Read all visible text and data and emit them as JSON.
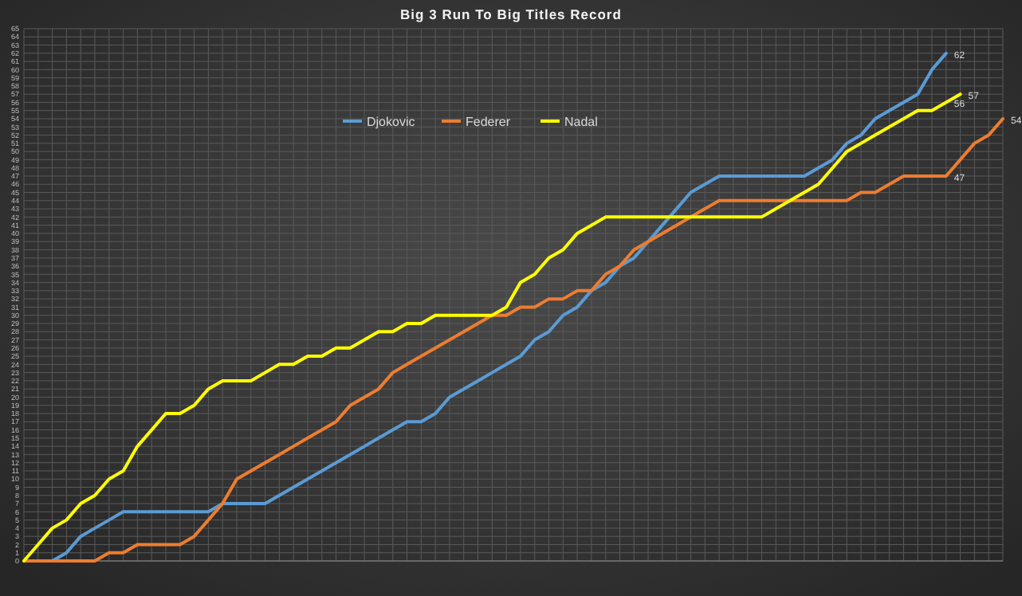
{
  "chart_data": {
    "type": "line",
    "title": "Big 3 Run To Big Titles Record",
    "categories": [
      null,
      null,
      null,
      null,
      null,
      null,
      null,
      null,
      null,
      null,
      null,
      null,
      null,
      null,
      null,
      null,
      null,
      null,
      null,
      null,
      null,
      null,
      null,
      null,
      null,
      null,
      null,
      null,
      null,
      null,
      null,
      null,
      null,
      null,
      null,
      null,
      null,
      null,
      null,
      null,
      null,
      null,
      null,
      null,
      null,
      null,
      null,
      null,
      null,
      null,
      null,
      null,
      null,
      null,
      null,
      null,
      null,
      null,
      null,
      null,
      null,
      null,
      null,
      null,
      null,
      null,
      null,
      null,
      null,
      null
    ],
    "series": [
      {
        "name": "Djokovic",
        "color": "#5b9bd5",
        "values": [
          null,
          null,
          0,
          1,
          3,
          4,
          5,
          6,
          6,
          6,
          6,
          6,
          6,
          6,
          7,
          7,
          7,
          7,
          8,
          9,
          10,
          11,
          12,
          13,
          14,
          15,
          16,
          17,
          17,
          18,
          20,
          21,
          22,
          23,
          24,
          25,
          27,
          28,
          30,
          31,
          33,
          34,
          36,
          37,
          39,
          41,
          43,
          45,
          46,
          47,
          47,
          47,
          47,
          47,
          47,
          47,
          48,
          49,
          51,
          52,
          54,
          55,
          56,
          57,
          60,
          62,
          null,
          null,
          null,
          null
        ],
        "value_labels": [
          null,
          null,
          null,
          null,
          null,
          null,
          null,
          null,
          null,
          null,
          null,
          null,
          null,
          null,
          null,
          null,
          null,
          null,
          null,
          null,
          null,
          null,
          null,
          null,
          null,
          null,
          null,
          null,
          null,
          null,
          null,
          null,
          null,
          null,
          null,
          null,
          null,
          null,
          null,
          null,
          null,
          null,
          null,
          null,
          null,
          null,
          null,
          null,
          null,
          null,
          null,
          null,
          null,
          null,
          null,
          null,
          null,
          null,
          null,
          null,
          null,
          null,
          null,
          null,
          null,
          "62",
          null,
          null,
          null,
          null
        ]
      },
      {
        "name": "Federer",
        "color": "#ed7d31",
        "values": [
          0,
          0,
          0,
          0,
          0,
          0,
          1,
          1,
          2,
          2,
          2,
          2,
          3,
          5,
          7,
          10,
          11,
          12,
          13,
          14,
          15,
          16,
          17,
          19,
          20,
          21,
          23,
          24,
          25,
          26,
          27,
          28,
          29,
          30,
          30,
          31,
          31,
          32,
          32,
          33,
          33,
          35,
          36,
          38,
          39,
          40,
          41,
          42,
          43,
          44,
          44,
          44,
          44,
          44,
          44,
          44,
          44,
          44,
          44,
          45,
          45,
          46,
          47,
          47,
          47,
          47,
          49,
          51,
          52,
          54
        ],
        "value_labels": [
          null,
          null,
          null,
          null,
          null,
          null,
          null,
          null,
          null,
          null,
          null,
          null,
          null,
          null,
          null,
          null,
          null,
          null,
          null,
          null,
          null,
          null,
          null,
          null,
          null,
          null,
          null,
          null,
          null,
          null,
          null,
          null,
          null,
          null,
          null,
          null,
          null,
          null,
          null,
          null,
          null,
          null,
          null,
          null,
          null,
          null,
          null,
          null,
          null,
          null,
          null,
          null,
          null,
          null,
          null,
          null,
          null,
          null,
          null,
          null,
          null,
          null,
          null,
          null,
          null,
          "47",
          null,
          null,
          null,
          "54"
        ]
      },
      {
        "name": "Nadal",
        "color": "#ffff00",
        "values": [
          0,
          2,
          4,
          5,
          7,
          8,
          10,
          11,
          14,
          16,
          18,
          18,
          19,
          21,
          22,
          22,
          22,
          23,
          24,
          24,
          25,
          25,
          26,
          26,
          27,
          28,
          28,
          29,
          29,
          30,
          30,
          30,
          30,
          30,
          31,
          34,
          35,
          37,
          38,
          40,
          41,
          42,
          42,
          42,
          42,
          42,
          42,
          42,
          42,
          42,
          42,
          42,
          42,
          43,
          44,
          45,
          46,
          48,
          50,
          51,
          52,
          53,
          54,
          55,
          55,
          56,
          57,
          null,
          null,
          null
        ],
        "value_labels": [
          null,
          null,
          null,
          null,
          null,
          null,
          null,
          null,
          null,
          null,
          null,
          null,
          null,
          null,
          null,
          null,
          null,
          null,
          null,
          null,
          null,
          null,
          null,
          null,
          null,
          null,
          null,
          null,
          null,
          null,
          null,
          null,
          null,
          null,
          null,
          null,
          null,
          null,
          null,
          null,
          null,
          null,
          null,
          null,
          null,
          null,
          null,
          null,
          null,
          null,
          null,
          null,
          null,
          null,
          null,
          null,
          null,
          null,
          null,
          null,
          null,
          null,
          null,
          null,
          null,
          "56",
          "57",
          null,
          null,
          null
        ]
      }
    ],
    "ylim": [
      0,
      65
    ],
    "yticks": [
      0,
      1,
      2,
      3,
      4,
      5,
      6,
      7,
      8,
      9,
      10,
      11,
      12,
      13,
      14,
      15,
      16,
      17,
      18,
      19,
      20,
      21,
      22,
      23,
      24,
      25,
      26,
      27,
      28,
      29,
      30,
      31,
      32,
      33,
      34,
      35,
      36,
      37,
      38,
      39,
      40,
      41,
      42,
      43,
      44,
      45,
      46,
      47,
      48,
      49,
      50,
      51,
      52,
      53,
      54,
      55,
      56,
      57,
      58,
      59,
      60,
      61,
      62,
      63,
      64,
      65
    ],
    "grid": true,
    "legend": "top",
    "tick_labels": "y"
  }
}
